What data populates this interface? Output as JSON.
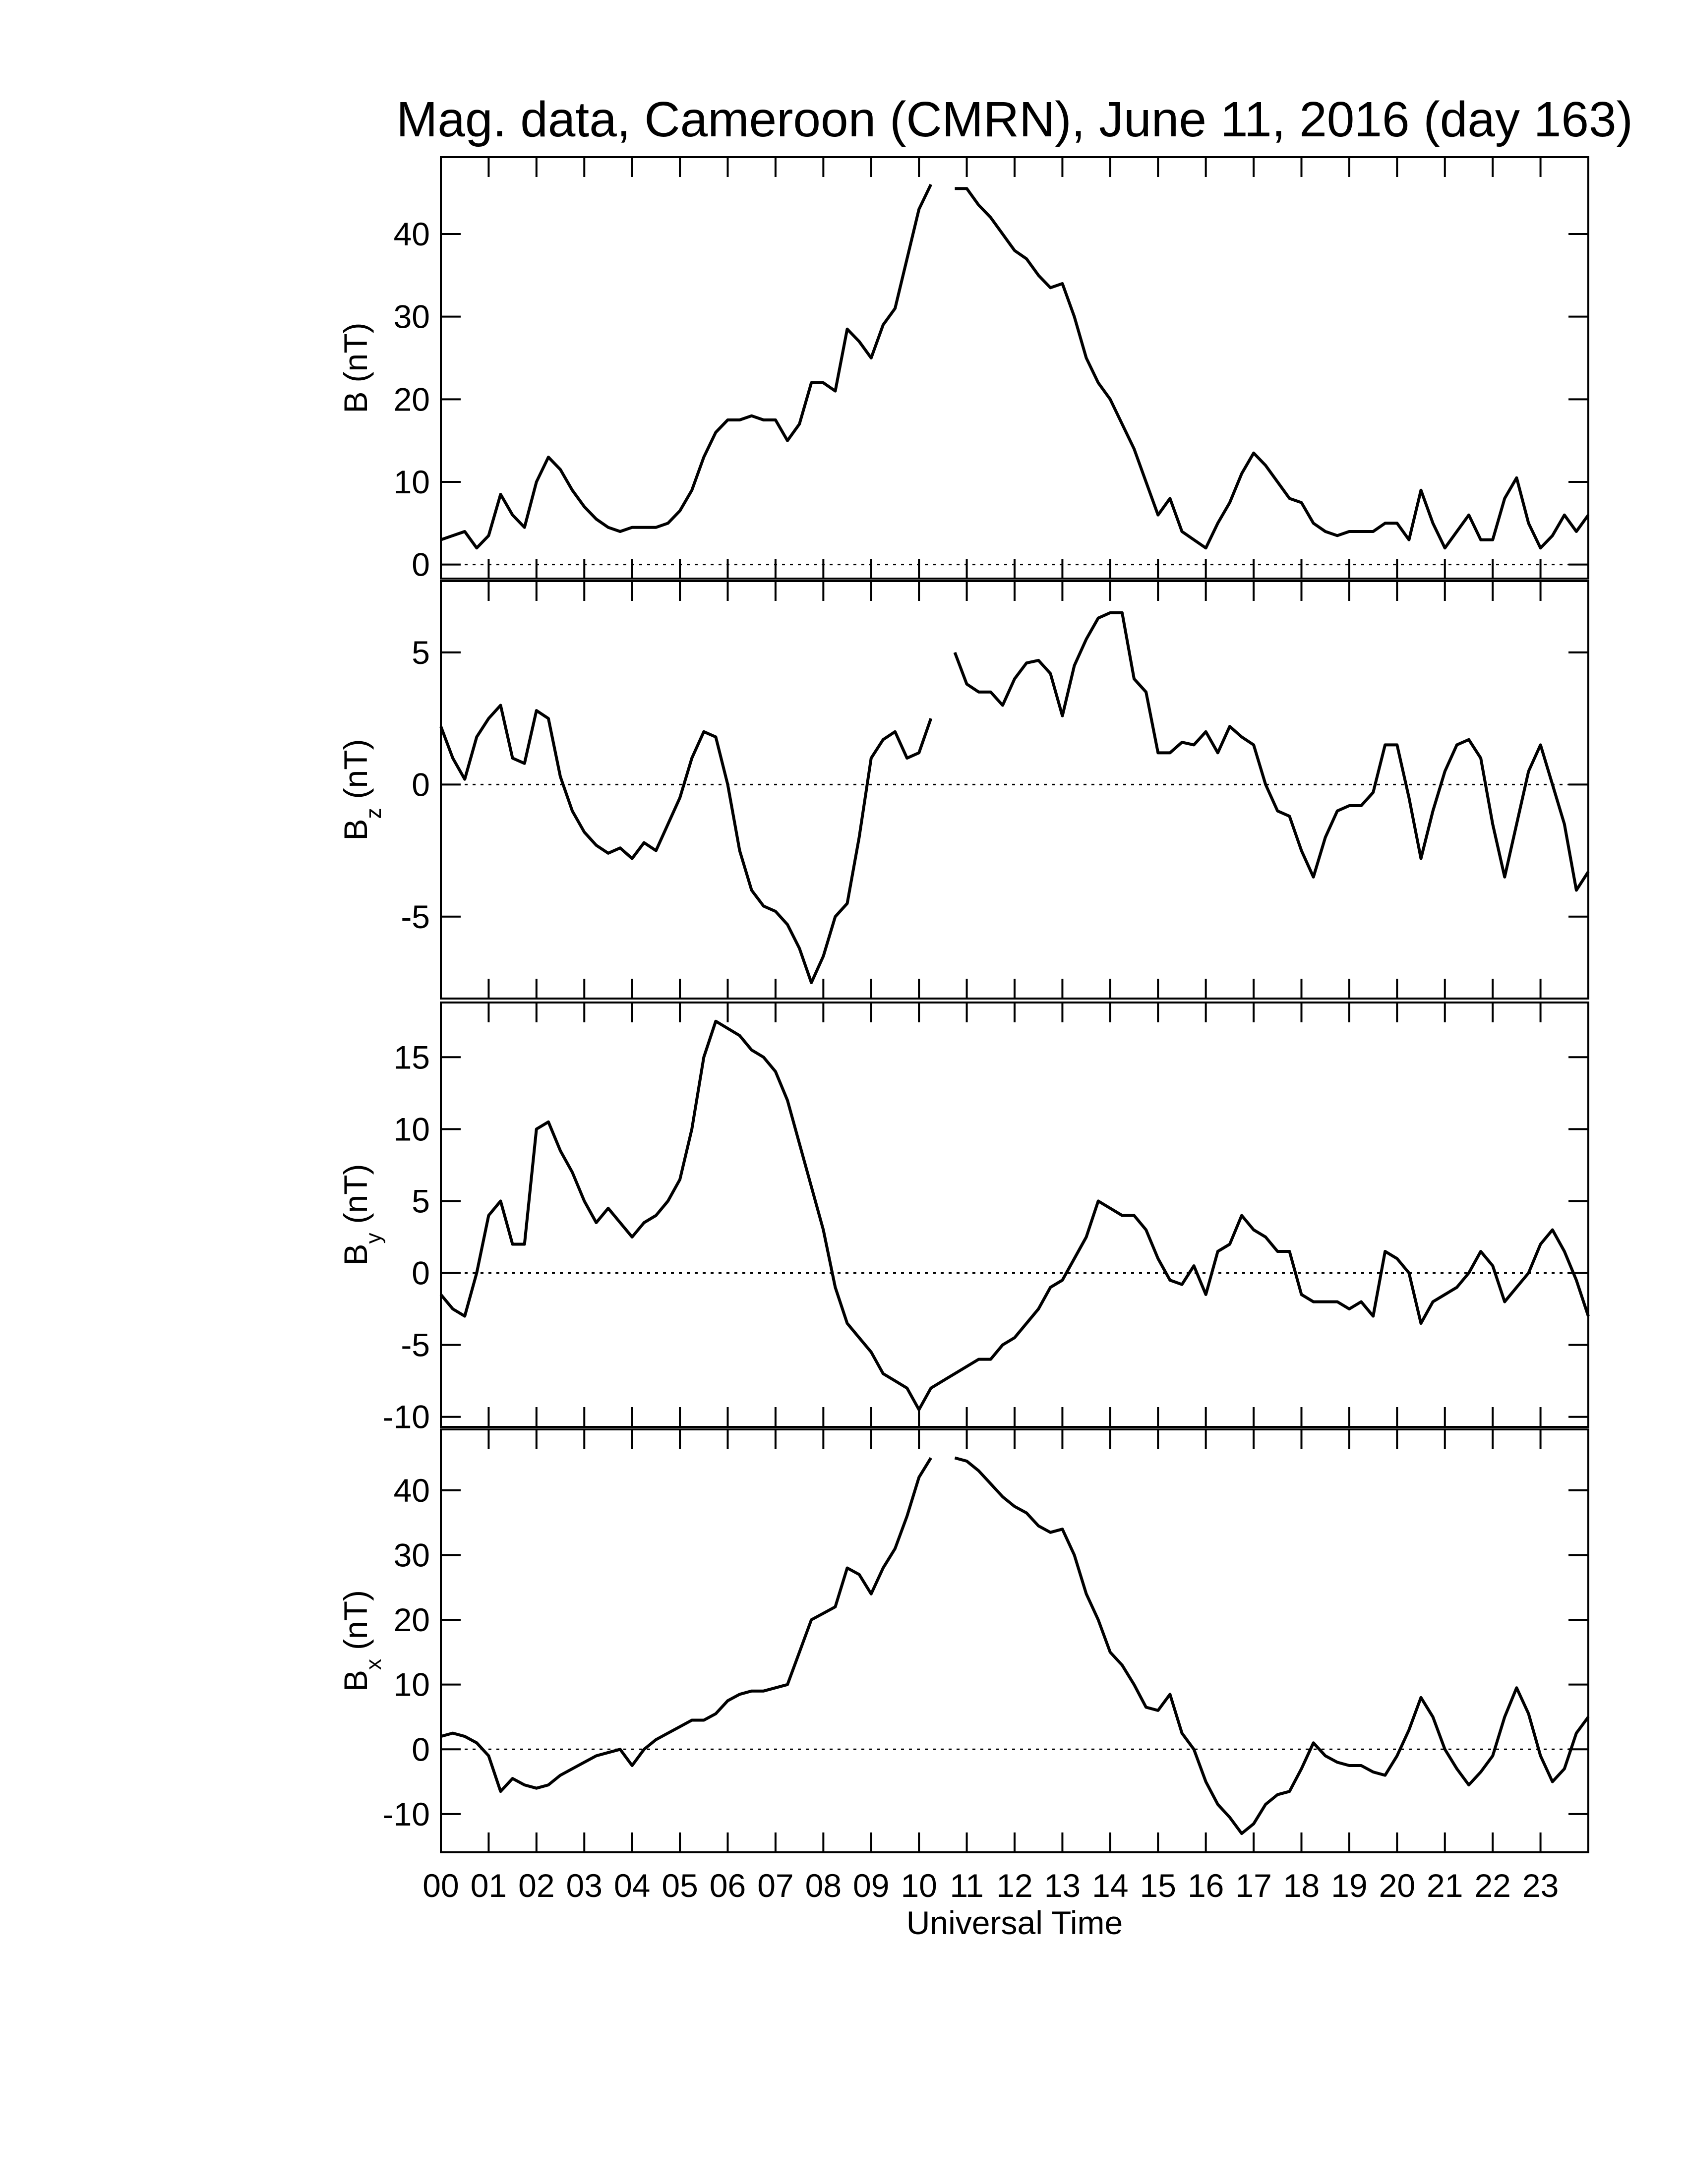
{
  "chart_data": [
    {
      "type": "line",
      "title": "Mag. data, Cameroon (CMRN), June 11, 2016 (day 163)",
      "ylabel": "B",
      "ylabel_unit": "(nT)",
      "color": "#000000",
      "zeroline": true,
      "xlim": [
        0,
        24
      ],
      "ylim": [
        -1.7,
        49.3
      ],
      "yticks": [
        0,
        10,
        20,
        30,
        40
      ],
      "x": [
        0,
        0.25,
        0.5,
        0.75,
        1,
        1.25,
        1.5,
        1.75,
        2,
        2.25,
        2.5,
        2.75,
        3,
        3.25,
        3.5,
        3.75,
        4,
        4.25,
        4.5,
        4.75,
        5,
        5.25,
        5.5,
        5.75,
        6,
        6.25,
        6.5,
        6.75,
        7,
        7.25,
        7.5,
        7.75,
        8,
        8.25,
        8.5,
        8.75,
        9,
        9.25,
        9.5,
        9.75,
        10,
        10.25,
        10.5,
        10.75,
        11,
        11.25,
        11.5,
        11.75,
        12,
        12.25,
        12.5,
        12.75,
        13,
        13.25,
        13.5,
        13.75,
        14,
        14.25,
        14.5,
        14.75,
        15,
        15.25,
        15.5,
        15.75,
        16,
        16.25,
        16.5,
        16.75,
        17,
        17.25,
        17.5,
        17.75,
        18,
        18.25,
        18.5,
        18.75,
        19,
        19.25,
        19.5,
        19.75,
        20,
        20.25,
        20.5,
        20.75,
        21,
        21.25,
        21.5,
        21.75,
        22,
        22.25,
        22.5,
        22.75,
        23,
        23.25,
        23.5,
        23.75,
        24
      ],
      "values": [
        3,
        3.5,
        4,
        2,
        3.5,
        8.5,
        6,
        4.5,
        10,
        13,
        11.5,
        9,
        7,
        5.5,
        4.5,
        4,
        4.5,
        4.5,
        4.5,
        5,
        6.5,
        9,
        13,
        16,
        17.5,
        17.5,
        18,
        17.5,
        17.5,
        15,
        17,
        22,
        22,
        21,
        28.5,
        27,
        25,
        29,
        31,
        37,
        43,
        46,
        null,
        45.5,
        45.5,
        43.5,
        42,
        40,
        38,
        37,
        35,
        33.5,
        34,
        30,
        25,
        22,
        20,
        17,
        14,
        10,
        6,
        8,
        4,
        3,
        2,
        5,
        7.5,
        11,
        13.5,
        12,
        10,
        8,
        7.5,
        5,
        4,
        3.5,
        4,
        4,
        4,
        5,
        5,
        3,
        9,
        5,
        2,
        4,
        6,
        3,
        3,
        8,
        10.5,
        5,
        2,
        3.5,
        6,
        4,
        6
      ]
    },
    {
      "type": "line",
      "ylabel": "B",
      "ylabel_sub": "z",
      "ylabel_unit": "(nT)",
      "color": "#000000",
      "zeroline": true,
      "xlim": [
        0,
        24
      ],
      "ylim": [
        -8.1,
        7.7
      ],
      "yticks": [
        -5,
        0,
        5
      ],
      "x": [
        0,
        0.25,
        0.5,
        0.75,
        1,
        1.25,
        1.5,
        1.75,
        2,
        2.25,
        2.5,
        2.75,
        3,
        3.25,
        3.5,
        3.75,
        4,
        4.25,
        4.5,
        4.75,
        5,
        5.25,
        5.5,
        5.75,
        6,
        6.25,
        6.5,
        6.75,
        7,
        7.25,
        7.5,
        7.75,
        8,
        8.25,
        8.5,
        8.75,
        9,
        9.25,
        9.5,
        9.75,
        10,
        10.25,
        10.5,
        10.75,
        11,
        11.25,
        11.5,
        11.75,
        12,
        12.25,
        12.5,
        12.75,
        13,
        13.25,
        13.5,
        13.75,
        14,
        14.25,
        14.5,
        14.75,
        15,
        15.25,
        15.5,
        15.75,
        16,
        16.25,
        16.5,
        16.75,
        17,
        17.25,
        17.5,
        17.75,
        18,
        18.25,
        18.5,
        18.75,
        19,
        19.25,
        19.5,
        19.75,
        20,
        20.25,
        20.5,
        20.75,
        21,
        21.25,
        21.5,
        21.75,
        22,
        22.25,
        22.5,
        22.75,
        23,
        23.25,
        23.5,
        23.75,
        24
      ],
      "values": [
        2.2,
        1,
        0.2,
        1.8,
        2.5,
        3,
        1,
        0.8,
        2.8,
        2.5,
        0.3,
        -1,
        -1.8,
        -2.3,
        -2.6,
        -2.4,
        -2.8,
        -2.2,
        -2.5,
        -1.5,
        -0.5,
        1,
        2,
        1.8,
        0,
        -2.5,
        -4,
        -4.6,
        -4.8,
        -5.3,
        -6.2,
        -7.5,
        -6.5,
        -5,
        -4.5,
        -2,
        1,
        1.7,
        2,
        1,
        1.2,
        2.5,
        null,
        5,
        3.8,
        3.5,
        3.5,
        3,
        4,
        4.6,
        4.7,
        4.2,
        2.6,
        4.5,
        5.5,
        6.3,
        6.5,
        6.5,
        4,
        3.5,
        1.2,
        1.2,
        1.6,
        1.5,
        2,
        1.2,
        2.2,
        1.8,
        1.5,
        0,
        -1,
        -1.2,
        -2.5,
        -3.5,
        -2,
        -1,
        -0.8,
        -0.8,
        -0.3,
        1.5,
        1.5,
        -0.5,
        -2.8,
        -1,
        0.5,
        1.5,
        1.7,
        1,
        -1.5,
        -3.5,
        -1.5,
        0.5,
        1.5,
        0,
        -1.5,
        -4,
        -3.3
      ]
    },
    {
      "type": "line",
      "ylabel": "B",
      "ylabel_sub": "y",
      "ylabel_unit": "(nT)",
      "color": "#000000",
      "zeroline": true,
      "xlim": [
        0,
        24
      ],
      "ylim": [
        -10.7,
        18.8
      ],
      "yticks": [
        -10,
        -5,
        0,
        5,
        10,
        15
      ],
      "x": [
        0,
        0.25,
        0.5,
        0.75,
        1,
        1.25,
        1.5,
        1.75,
        2,
        2.25,
        2.5,
        2.75,
        3,
        3.25,
        3.5,
        3.75,
        4,
        4.25,
        4.5,
        4.75,
        5,
        5.25,
        5.5,
        5.75,
        6,
        6.25,
        6.5,
        6.75,
        7,
        7.25,
        7.5,
        7.75,
        8,
        8.25,
        8.5,
        8.75,
        9,
        9.25,
        9.5,
        9.75,
        10,
        10.25,
        10.5,
        10.75,
        11,
        11.25,
        11.5,
        11.75,
        12,
        12.25,
        12.5,
        12.75,
        13,
        13.25,
        13.5,
        13.75,
        14,
        14.25,
        14.5,
        14.75,
        15,
        15.25,
        15.5,
        15.75,
        16,
        16.25,
        16.5,
        16.75,
        17,
        17.25,
        17.5,
        17.75,
        18,
        18.25,
        18.5,
        18.75,
        19,
        19.25,
        19.5,
        19.75,
        20,
        20.25,
        20.5,
        20.75,
        21,
        21.25,
        21.5,
        21.75,
        22,
        22.25,
        22.5,
        22.75,
        23,
        23.25,
        23.5,
        23.75,
        24
      ],
      "values": [
        -1.5,
        -2.5,
        -3,
        0,
        4,
        5,
        2,
        2,
        10,
        10.5,
        8.5,
        7,
        5,
        3.5,
        4.5,
        3.5,
        2.5,
        3.5,
        4,
        5,
        6.5,
        10,
        15,
        17.5,
        17,
        16.5,
        15.5,
        15,
        14,
        12,
        9,
        6,
        3,
        -1,
        -3.5,
        -4.5,
        -5.5,
        -7,
        -7.5,
        -8,
        -9.5,
        -8,
        -7.5,
        -7,
        -6.5,
        -6,
        -6,
        -5,
        -4.5,
        -3.5,
        -2.5,
        -1,
        -0.5,
        1,
        2.5,
        5,
        4.5,
        4,
        4,
        3,
        1,
        -0.5,
        -0.8,
        0.5,
        -1.5,
        1.5,
        2,
        4,
        3,
        2.5,
        1.5,
        1.5,
        -1.5,
        -2,
        -2,
        -2,
        -2.5,
        -2,
        -3,
        1.5,
        1,
        0,
        -3.5,
        -2,
        -1.5,
        -1,
        0,
        1.5,
        0.5,
        -2,
        -1,
        0,
        2,
        3,
        1.5,
        -0.5,
        -3
      ]
    },
    {
      "type": "line",
      "ylabel": "B",
      "ylabel_sub": "x",
      "ylabel_unit": "(nT)",
      "xlabel": "Universal Time",
      "color": "#000000",
      "zeroline": true,
      "xlim": [
        0,
        24
      ],
      "ylim": [
        -15.9,
        49.4
      ],
      "yticks": [
        -10,
        0,
        10,
        20,
        30,
        40
      ],
      "xticks": [
        {
          "value": 0,
          "label": "00"
        },
        {
          "value": 1,
          "label": "01"
        },
        {
          "value": 2,
          "label": "02"
        },
        {
          "value": 3,
          "label": "03"
        },
        {
          "value": 4,
          "label": "04"
        },
        {
          "value": 5,
          "label": "05"
        },
        {
          "value": 6,
          "label": "06"
        },
        {
          "value": 7,
          "label": "07"
        },
        {
          "value": 8,
          "label": "08"
        },
        {
          "value": 9,
          "label": "09"
        },
        10,
        11,
        12,
        13,
        14,
        15,
        16,
        17,
        18,
        19,
        20,
        21,
        22,
        23
      ],
      "x": [
        0,
        0.25,
        0.5,
        0.75,
        1,
        1.25,
        1.5,
        1.75,
        2,
        2.25,
        2.5,
        2.75,
        3,
        3.25,
        3.5,
        3.75,
        4,
        4.25,
        4.5,
        4.75,
        5,
        5.25,
        5.5,
        5.75,
        6,
        6.25,
        6.5,
        6.75,
        7,
        7.25,
        7.5,
        7.75,
        8,
        8.25,
        8.5,
        8.75,
        9,
        9.25,
        9.5,
        9.75,
        10,
        10.25,
        10.5,
        10.75,
        11,
        11.25,
        11.5,
        11.75,
        12,
        12.25,
        12.5,
        12.75,
        13,
        13.25,
        13.5,
        13.75,
        14,
        14.25,
        14.5,
        14.75,
        15,
        15.25,
        15.5,
        15.75,
        16,
        16.25,
        16.5,
        16.75,
        17,
        17.25,
        17.5,
        17.75,
        18,
        18.25,
        18.5,
        18.75,
        19,
        19.25,
        19.5,
        19.75,
        20,
        20.25,
        20.5,
        20.75,
        21,
        21.25,
        21.5,
        21.75,
        22,
        22.25,
        22.5,
        22.75,
        23,
        23.25,
        23.5,
        23.75,
        24
      ],
      "values": [
        2,
        2.5,
        2,
        1,
        -1,
        -6.5,
        -4.5,
        -5.5,
        -6,
        -5.5,
        -4,
        -3,
        -2,
        -1,
        -0.5,
        0,
        -2.5,
        0,
        1.5,
        2.5,
        3.5,
        4.5,
        4.5,
        5.5,
        7.5,
        8.5,
        9,
        9,
        9.5,
        10,
        15,
        20,
        21,
        22,
        28,
        27,
        24,
        28,
        31,
        36,
        42,
        45,
        null,
        45,
        44.5,
        43,
        41,
        39,
        37.5,
        36.5,
        34.5,
        33.5,
        34,
        30,
        24,
        20,
        15,
        13,
        10,
        6.5,
        6,
        8.5,
        2.5,
        0,
        -5,
        -8.5,
        -10.5,
        -13,
        -11.5,
        -8.5,
        -7,
        -6.5,
        -3,
        1,
        -1,
        -2,
        -2.5,
        -2.5,
        -3.5,
        -4,
        -1,
        3,
        8,
        5,
        0,
        -3,
        -5.5,
        -3.5,
        -1,
        5,
        9.5,
        5.5,
        -1,
        -5,
        -3,
        2.5,
        5
      ]
    }
  ]
}
